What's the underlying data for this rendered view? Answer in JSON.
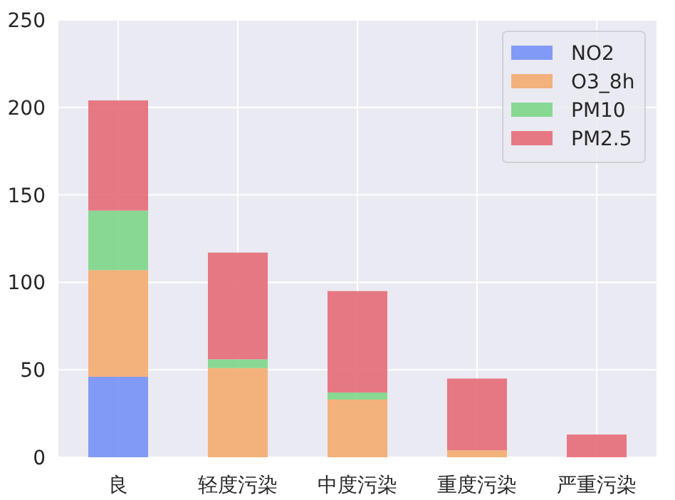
{
  "chart_data": {
    "type": "bar",
    "stacked": true,
    "categories": [
      "良",
      "轻度污染",
      "中度污染",
      "重度污染",
      "严重污染"
    ],
    "series": [
      {
        "name": "NO2",
        "color": "#7591f5",
        "values": [
          46,
          0,
          0,
          0,
          0
        ]
      },
      {
        "name": "O3_8h",
        "color": "#f4ab6e",
        "values": [
          61,
          51,
          33,
          4,
          0
        ]
      },
      {
        "name": "PM10",
        "color": "#7dd688",
        "values": [
          34,
          5,
          4,
          0,
          0
        ]
      },
      {
        "name": "PM2.5",
        "color": "#e66b77",
        "values": [
          63,
          61,
          58,
          41,
          13
        ]
      }
    ],
    "ylim": [
      0,
      250
    ],
    "yticks": [
      0,
      50,
      100,
      150,
      200,
      250
    ],
    "grid": true,
    "legend": "top right"
  }
}
